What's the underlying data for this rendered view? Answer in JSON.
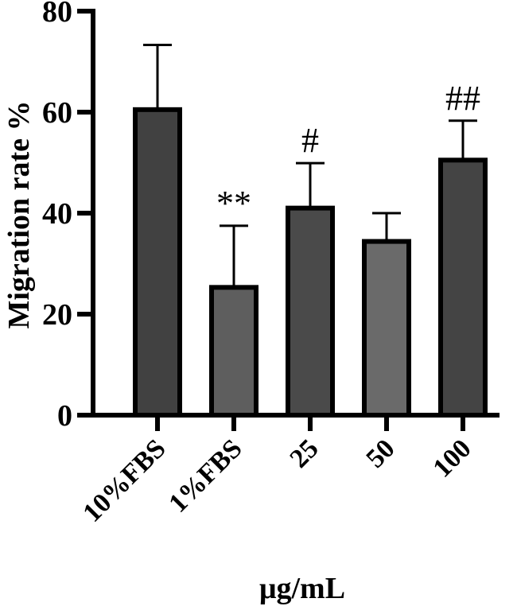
{
  "chart_data": {
    "type": "bar",
    "categories": [
      "10%FBS",
      "1%FBS",
      "25",
      "50",
      "100"
    ],
    "values": [
      60.5,
      25.3,
      41.0,
      34.4,
      50.5
    ],
    "errors": [
      12.8,
      12.2,
      8.9,
      5.6,
      7.8
    ],
    "annotations": [
      "",
      "**",
      "#",
      "",
      "##"
    ],
    "bar_colors": [
      "#414141",
      "#5e5e5e",
      "#4a4a4a",
      "#6a6a6a",
      "#444444"
    ],
    "title": "",
    "xlabel": "μg/mL",
    "ylabel": "Migration rate %",
    "ylim": [
      0,
      80
    ],
    "yticks": [
      "0",
      "20",
      "40",
      "60",
      "80"
    ],
    "grid": false,
    "legend": "none"
  }
}
